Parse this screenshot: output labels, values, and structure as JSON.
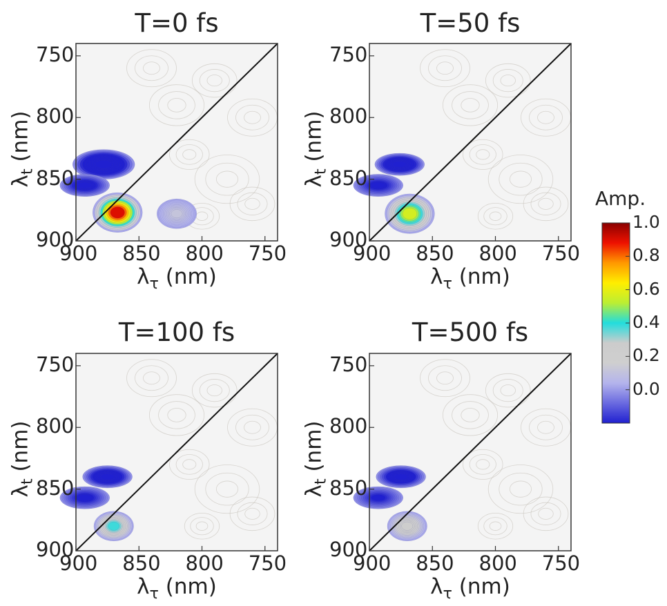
{
  "chart_data": [
    {
      "type": "heatmap",
      "title": "T=0 fs",
      "xlabel_main": "λ",
      "xlabel_sub": "τ",
      "xlabel_unit": " (nm)",
      "ylabel_main": "λ",
      "ylabel_sub": "t",
      "ylabel_unit": " (nm)",
      "xlim": [
        900,
        740
      ],
      "ylim": [
        900,
        740
      ],
      "xticks": [
        "900",
        "850",
        "800",
        "750"
      ],
      "yticks": [
        "750",
        "800",
        "850",
        "900"
      ],
      "features": [
        {
          "x": 867,
          "y": 877,
          "amp": 1.0
        },
        {
          "x": 878,
          "y": 838,
          "amp": -0.55
        },
        {
          "x": 893,
          "y": 855,
          "amp": -0.3
        },
        {
          "x": 820,
          "y": 878,
          "amp": 0.12
        }
      ],
      "diagonal": true
    },
    {
      "type": "heatmap",
      "title": "T=50 fs",
      "xlabel_main": "λ",
      "xlabel_sub": "τ",
      "xlabel_unit": " (nm)",
      "ylabel_main": "λ",
      "ylabel_sub": "t",
      "ylabel_unit": " (nm)",
      "xlim": [
        900,
        740
      ],
      "ylim": [
        900,
        740
      ],
      "xticks": [
        "900",
        "850",
        "800",
        "750"
      ],
      "yticks": [
        "750",
        "800",
        "850",
        "900"
      ],
      "features": [
        {
          "x": 868,
          "y": 878,
          "amp": 0.62
        },
        {
          "x": 876,
          "y": 838,
          "amp": -0.45
        },
        {
          "x": 893,
          "y": 855,
          "amp": -0.25
        }
      ],
      "diagonal": true
    },
    {
      "type": "heatmap",
      "title": "T=100 fs",
      "xlabel_main": "λ",
      "xlabel_sub": "τ",
      "xlabel_unit": " (nm)",
      "ylabel_main": "λ",
      "ylabel_sub": "t",
      "ylabel_unit": " (nm)",
      "xlim": [
        900,
        740
      ],
      "ylim": [
        900,
        740
      ],
      "xticks": [
        "900",
        "850",
        "800",
        "750"
      ],
      "yticks": [
        "750",
        "800",
        "850",
        "900"
      ],
      "features": [
        {
          "x": 870,
          "y": 880,
          "amp": 0.42
        },
        {
          "x": 875,
          "y": 840,
          "amp": -0.42
        },
        {
          "x": 893,
          "y": 857,
          "amp": -0.25
        }
      ],
      "diagonal": true
    },
    {
      "type": "heatmap",
      "title": "T=500 fs",
      "xlabel_main": "λ",
      "xlabel_sub": "τ",
      "xlabel_unit": " (nm)",
      "ylabel_main": "λ",
      "ylabel_sub": "t",
      "ylabel_unit": " (nm)",
      "xlim": [
        900,
        740
      ],
      "ylim": [
        900,
        740
      ],
      "xticks": [
        "900",
        "850",
        "800",
        "750"
      ],
      "yticks": [
        "750",
        "800",
        "850",
        "900"
      ],
      "features": [
        {
          "x": 870,
          "y": 880,
          "amp": 0.28
        },
        {
          "x": 875,
          "y": 840,
          "amp": -0.38
        },
        {
          "x": 893,
          "y": 857,
          "amp": -0.22
        }
      ],
      "diagonal": true
    }
  ],
  "colorbar": {
    "title": "Amp.",
    "range": [
      -0.2,
      1.0
    ],
    "ticks": [
      {
        "value": 1.0,
        "label": "1.0"
      },
      {
        "value": 0.8,
        "label": "0.8"
      },
      {
        "value": 0.6,
        "label": "0.6"
      },
      {
        "value": 0.4,
        "label": "0.4"
      },
      {
        "value": 0.2,
        "label": "0.2"
      },
      {
        "value": 0.0,
        "label": "0.0"
      }
    ],
    "colors": [
      "#2020d0",
      "#6a6ae0",
      "#b4b4ec",
      "#cfcfcf",
      "#cccccc",
      "#22dddd",
      "#bbee33",
      "#ffee00",
      "#ff9900",
      "#ee1100",
      "#8a0000"
    ]
  }
}
